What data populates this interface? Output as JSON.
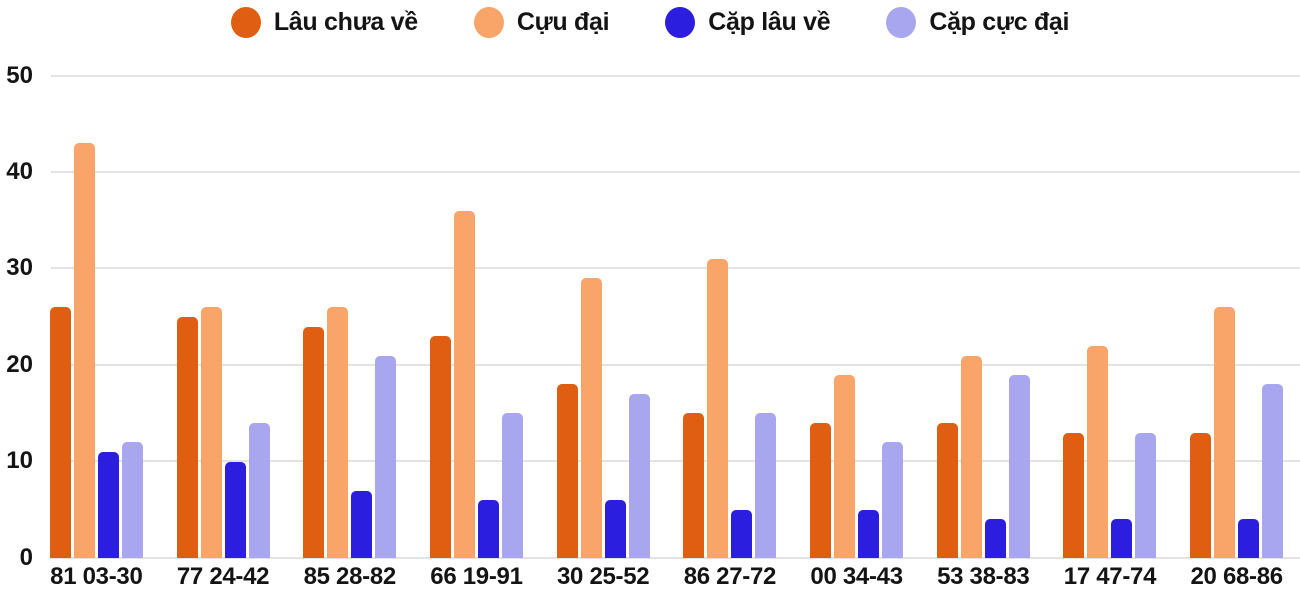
{
  "chart_data": {
    "type": "bar",
    "title": "",
    "categories": [
      "81 03-30",
      "77 24-42",
      "85 28-82",
      "66 19-91",
      "30 25-52",
      "86 27-72",
      "00 34-43",
      "53 38-83",
      "17 47-74",
      "20 68-86"
    ],
    "series": [
      {
        "name": "Lâu chưa về",
        "color": "#e05e11",
        "values": [
          26,
          25,
          24,
          23,
          18,
          15,
          14,
          14,
          13,
          13
        ]
      },
      {
        "name": "Cựu đại",
        "color": "#f9a469",
        "values": [
          43,
          26,
          26,
          36,
          29,
          31,
          19,
          21,
          22,
          26
        ]
      },
      {
        "name": "Cặp lâu về",
        "color": "#2b1ede",
        "values": [
          11,
          10,
          7,
          6,
          6,
          5,
          5,
          4,
          4,
          4
        ]
      },
      {
        "name": "Cặp cực đại",
        "color": "#a9a6f0",
        "values": [
          12,
          14,
          21,
          15,
          17,
          15,
          12,
          19,
          13,
          18
        ]
      }
    ],
    "xlabel": "",
    "ylabel": "",
    "ylim": [
      0,
      50
    ],
    "y_ticks": [
      0,
      10,
      20,
      30,
      40,
      50
    ],
    "grid": true,
    "legend_position": "top"
  },
  "styles": {
    "grid_color": "#e3e3e3",
    "text_color": "#141414",
    "background": "#ffffff"
  }
}
